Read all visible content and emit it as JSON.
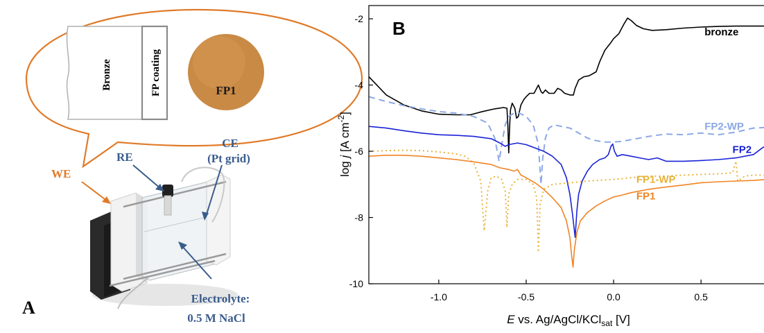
{
  "panel_a": {
    "letter": "A",
    "bubble": {
      "bronze_label": "Bronze",
      "coating_label": "FP coating",
      "sample_label": "FP1"
    },
    "labels": {
      "we": "WE",
      "re": "RE",
      "ce_line1": "CE",
      "ce_line2": "(Pt grid)",
      "electrolyte_line1": "Electrolyte:",
      "electrolyte_line2": "0.5 M NaCl"
    },
    "colors": {
      "orange": "#e07a28",
      "blue": "#3a5c8c",
      "sample": "#c98a45"
    }
  },
  "chart_data": {
    "type": "line",
    "panel_letter": "B",
    "xlabel_italic": "E",
    "xlabel_rest": " vs. Ag/AgCl/KCl",
    "xlabel_sub": "sat",
    "xlabel_unit": " [V]",
    "ylabel_prefix": "log ",
    "ylabel_italic": "j",
    "ylabel_unit": " [A cm",
    "ylabel_sup": "-2",
    "ylabel_close": "]",
    "xlim": [
      -1.4,
      0.88
    ],
    "ylim": [
      -10,
      -1.6
    ],
    "xticks": [
      -1.0,
      -0.5,
      0.0,
      0.5
    ],
    "xtick_labels": [
      "-1.0",
      "-0.5",
      "0.0",
      "0.5"
    ],
    "yticks": [
      -10,
      -8,
      -6,
      -4,
      -2
    ],
    "ytick_labels": [
      "-10",
      "-8",
      "-6",
      "-4",
      "-2"
    ],
    "grid": false,
    "series": [
      {
        "name": "bronze",
        "color": "#000000",
        "dash": "solid",
        "label_at": [
          0.52,
          -2.5
        ],
        "points": [
          [
            -1.4,
            -3.75
          ],
          [
            -1.3,
            -4.3
          ],
          [
            -1.2,
            -4.6
          ],
          [
            -1.1,
            -4.78
          ],
          [
            -1.0,
            -4.88
          ],
          [
            -0.9,
            -4.9
          ],
          [
            -0.82,
            -4.9
          ],
          [
            -0.75,
            -4.8
          ],
          [
            -0.68,
            -4.72
          ],
          [
            -0.63,
            -4.68
          ],
          [
            -0.61,
            -4.7
          ],
          [
            -0.605,
            -5.2
          ],
          [
            -0.6,
            -6.05
          ],
          [
            -0.595,
            -5.3
          ],
          [
            -0.59,
            -4.75
          ],
          [
            -0.58,
            -4.55
          ],
          [
            -0.565,
            -4.7
          ],
          [
            -0.555,
            -5.0
          ],
          [
            -0.545,
            -4.95
          ],
          [
            -0.53,
            -4.6
          ],
          [
            -0.515,
            -4.45
          ],
          [
            -0.5,
            -4.35
          ],
          [
            -0.48,
            -4.25
          ],
          [
            -0.455,
            -4.25
          ],
          [
            -0.44,
            -4.1
          ],
          [
            -0.43,
            -4.0
          ],
          [
            -0.415,
            -4.2
          ],
          [
            -0.405,
            -4.25
          ],
          [
            -0.39,
            -4.15
          ],
          [
            -0.37,
            -4.25
          ],
          [
            -0.34,
            -4.25
          ],
          [
            -0.32,
            -4.1
          ],
          [
            -0.3,
            -4.15
          ],
          [
            -0.28,
            -4.25
          ],
          [
            -0.25,
            -4.3
          ],
          [
            -0.23,
            -4.3
          ],
          [
            -0.22,
            -4.1
          ],
          [
            -0.2,
            -3.85
          ],
          [
            -0.17,
            -3.75
          ],
          [
            -0.14,
            -3.72
          ],
          [
            -0.1,
            -3.6
          ],
          [
            -0.08,
            -3.3
          ],
          [
            -0.05,
            -2.95
          ],
          [
            -0.02,
            -2.75
          ],
          [
            0.0,
            -2.6
          ],
          [
            0.03,
            -2.45
          ],
          [
            0.06,
            -2.15
          ],
          [
            0.08,
            -1.98
          ],
          [
            0.1,
            -2.05
          ],
          [
            0.13,
            -2.2
          ],
          [
            0.17,
            -2.3
          ],
          [
            0.22,
            -2.35
          ],
          [
            0.3,
            -2.33
          ],
          [
            0.4,
            -2.28
          ],
          [
            0.5,
            -2.25
          ],
          [
            0.6,
            -2.23
          ],
          [
            0.7,
            -2.22
          ],
          [
            0.8,
            -2.22
          ],
          [
            0.88,
            -2.22
          ]
        ]
      },
      {
        "name": "FP2-WP",
        "color": "#8ca8e6",
        "dash": "dashed",
        "label_at": [
          0.52,
          -5.35
        ],
        "points": [
          [
            -1.4,
            -4.35
          ],
          [
            -1.3,
            -4.5
          ],
          [
            -1.2,
            -4.62
          ],
          [
            -1.1,
            -4.72
          ],
          [
            -1.0,
            -4.8
          ],
          [
            -0.9,
            -4.85
          ],
          [
            -0.8,
            -4.95
          ],
          [
            -0.72,
            -5.15
          ],
          [
            -0.68,
            -5.6
          ],
          [
            -0.655,
            -6.3
          ],
          [
            -0.64,
            -5.8
          ],
          [
            -0.62,
            -5.2
          ],
          [
            -0.6,
            -4.95
          ],
          [
            -0.57,
            -4.85
          ],
          [
            -0.54,
            -4.85
          ],
          [
            -0.5,
            -4.95
          ],
          [
            -0.46,
            -5.2
          ],
          [
            -0.43,
            -5.8
          ],
          [
            -0.415,
            -7.0
          ],
          [
            -0.405,
            -6.2
          ],
          [
            -0.39,
            -5.6
          ],
          [
            -0.37,
            -5.3
          ],
          [
            -0.34,
            -5.2
          ],
          [
            -0.3,
            -5.25
          ],
          [
            -0.25,
            -5.3
          ],
          [
            -0.2,
            -5.45
          ],
          [
            -0.15,
            -5.6
          ],
          [
            -0.1,
            -5.68
          ],
          [
            -0.05,
            -5.72
          ],
          [
            0.0,
            -5.72
          ],
          [
            0.05,
            -5.7
          ],
          [
            0.1,
            -5.65
          ],
          [
            0.2,
            -5.55
          ],
          [
            0.3,
            -5.48
          ],
          [
            0.4,
            -5.5
          ],
          [
            0.5,
            -5.45
          ],
          [
            0.6,
            -5.5
          ],
          [
            0.7,
            -5.42
          ],
          [
            0.8,
            -5.3
          ],
          [
            0.88,
            -5.28
          ]
        ]
      },
      {
        "name": "FP2",
        "color": "#1a22d6",
        "dash": "solid",
        "label_at": [
          0.68,
          -6.05
        ],
        "points": [
          [
            -1.4,
            -5.25
          ],
          [
            -1.3,
            -5.3
          ],
          [
            -1.2,
            -5.38
          ],
          [
            -1.1,
            -5.45
          ],
          [
            -1.0,
            -5.5
          ],
          [
            -0.9,
            -5.52
          ],
          [
            -0.8,
            -5.55
          ],
          [
            -0.7,
            -5.62
          ],
          [
            -0.65,
            -5.75
          ],
          [
            -0.62,
            -5.85
          ],
          [
            -0.6,
            -5.8
          ],
          [
            -0.55,
            -5.75
          ],
          [
            -0.5,
            -5.8
          ],
          [
            -0.45,
            -5.9
          ],
          [
            -0.4,
            -6.0
          ],
          [
            -0.35,
            -6.15
          ],
          [
            -0.3,
            -6.4
          ],
          [
            -0.27,
            -6.8
          ],
          [
            -0.25,
            -7.3
          ],
          [
            -0.235,
            -7.9
          ],
          [
            -0.22,
            -8.6
          ],
          [
            -0.21,
            -7.8
          ],
          [
            -0.2,
            -7.3
          ],
          [
            -0.18,
            -6.9
          ],
          [
            -0.15,
            -6.6
          ],
          [
            -0.12,
            -6.4
          ],
          [
            -0.08,
            -6.25
          ],
          [
            -0.05,
            -6.2
          ],
          [
            -0.03,
            -6.1
          ],
          [
            -0.015,
            -5.85
          ],
          [
            -0.005,
            -5.78
          ],
          [
            0.005,
            -6.0
          ],
          [
            0.02,
            -6.15
          ],
          [
            0.05,
            -6.1
          ],
          [
            0.1,
            -6.15
          ],
          [
            0.15,
            -6.2
          ],
          [
            0.2,
            -6.25
          ],
          [
            0.25,
            -6.2
          ],
          [
            0.3,
            -6.3
          ],
          [
            0.35,
            -6.3
          ],
          [
            0.4,
            -6.3
          ],
          [
            0.5,
            -6.28
          ],
          [
            0.6,
            -6.25
          ],
          [
            0.7,
            -6.2
          ],
          [
            0.75,
            -6.15
          ],
          [
            0.8,
            -6.1
          ],
          [
            0.85,
            -5.9
          ],
          [
            0.88,
            -5.8
          ]
        ]
      },
      {
        "name": "FP1-WP",
        "color": "#e8b23a",
        "dash": "dotted",
        "label_at": [
          0.13,
          -6.95
        ],
        "points": [
          [
            -1.4,
            -6.0
          ],
          [
            -1.3,
            -5.98
          ],
          [
            -1.2,
            -5.97
          ],
          [
            -1.1,
            -5.98
          ],
          [
            -1.0,
            -6.02
          ],
          [
            -0.9,
            -6.08
          ],
          [
            -0.85,
            -6.15
          ],
          [
            -0.8,
            -6.35
          ],
          [
            -0.76,
            -6.9
          ],
          [
            -0.74,
            -8.4
          ],
          [
            -0.72,
            -7.2
          ],
          [
            -0.7,
            -6.8
          ],
          [
            -0.67,
            -6.75
          ],
          [
            -0.64,
            -6.85
          ],
          [
            -0.62,
            -7.2
          ],
          [
            -0.61,
            -8.3
          ],
          [
            -0.6,
            -7.3
          ],
          [
            -0.58,
            -7.0
          ],
          [
            -0.55,
            -6.85
          ],
          [
            -0.5,
            -6.85
          ],
          [
            -0.46,
            -7.0
          ],
          [
            -0.44,
            -7.4
          ],
          [
            -0.43,
            -9.05
          ],
          [
            -0.42,
            -7.6
          ],
          [
            -0.4,
            -7.15
          ],
          [
            -0.35,
            -7.0
          ],
          [
            -0.25,
            -6.95
          ],
          [
            -0.15,
            -6.9
          ],
          [
            0.0,
            -6.85
          ],
          [
            0.1,
            -6.8
          ],
          [
            0.2,
            -6.75
          ],
          [
            0.3,
            -6.75
          ],
          [
            0.4,
            -6.72
          ],
          [
            0.5,
            -6.7
          ],
          [
            0.6,
            -6.68
          ],
          [
            0.68,
            -6.65
          ],
          [
            0.7,
            -6.3
          ],
          [
            0.71,
            -6.9
          ],
          [
            0.75,
            -6.75
          ],
          [
            0.8,
            -6.72
          ],
          [
            0.88,
            -6.72
          ]
        ]
      },
      {
        "name": "FP1",
        "color": "#f08424",
        "dash": "solid",
        "label_at": [
          0.13,
          -7.45
        ],
        "points": [
          [
            -1.4,
            -6.15
          ],
          [
            -1.3,
            -6.12
          ],
          [
            -1.2,
            -6.12
          ],
          [
            -1.1,
            -6.15
          ],
          [
            -1.0,
            -6.2
          ],
          [
            -0.9,
            -6.25
          ],
          [
            -0.8,
            -6.32
          ],
          [
            -0.7,
            -6.4
          ],
          [
            -0.65,
            -6.5
          ],
          [
            -0.6,
            -6.55
          ],
          [
            -0.57,
            -6.6
          ],
          [
            -0.55,
            -6.55
          ],
          [
            -0.53,
            -6.72
          ],
          [
            -0.5,
            -6.8
          ],
          [
            -0.45,
            -6.95
          ],
          [
            -0.4,
            -7.15
          ],
          [
            -0.35,
            -7.4
          ],
          [
            -0.3,
            -7.7
          ],
          [
            -0.27,
            -8.1
          ],
          [
            -0.25,
            -8.6
          ],
          [
            -0.24,
            -9.15
          ],
          [
            -0.232,
            -9.5
          ],
          [
            -0.225,
            -9.0
          ],
          [
            -0.21,
            -8.45
          ],
          [
            -0.19,
            -8.1
          ],
          [
            -0.15,
            -7.85
          ],
          [
            -0.1,
            -7.65
          ],
          [
            -0.05,
            -7.5
          ],
          [
            0.0,
            -7.38
          ],
          [
            0.05,
            -7.32
          ],
          [
            0.1,
            -7.25
          ],
          [
            0.15,
            -7.2
          ],
          [
            0.2,
            -7.15
          ],
          [
            0.3,
            -7.08
          ],
          [
            0.4,
            -7.02
          ],
          [
            0.5,
            -6.95
          ],
          [
            0.6,
            -6.92
          ],
          [
            0.7,
            -6.9
          ],
          [
            0.8,
            -6.88
          ],
          [
            0.88,
            -6.85
          ]
        ]
      }
    ]
  }
}
